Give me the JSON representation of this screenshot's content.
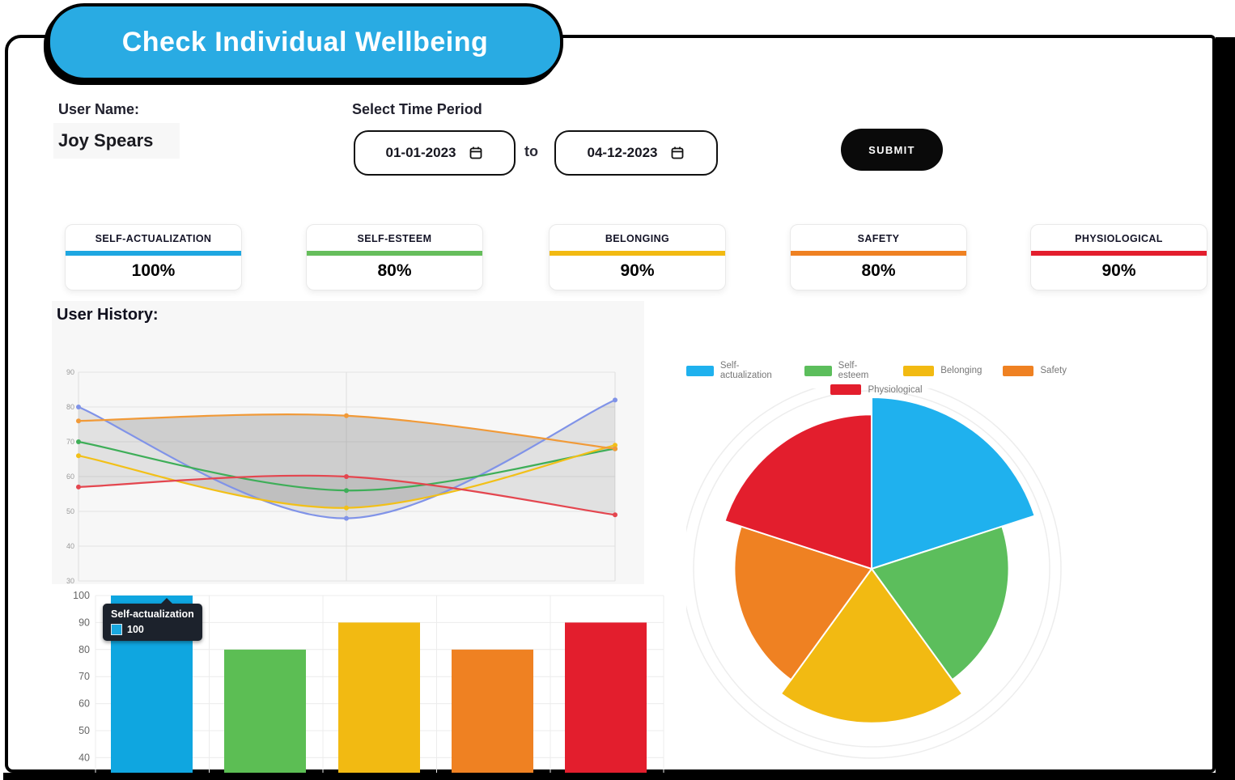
{
  "badge": {
    "label": "Check Individual Wellbeing",
    "color": "#29ABE3"
  },
  "form": {
    "user_name_label": "User Name:",
    "user_name_value": "Joy Spears",
    "time_period_label": "Select Time Period",
    "date_from": "01-01-2023",
    "to_label": "to",
    "date_to": "04-12-2023",
    "submit_label": "SUBMIT"
  },
  "stat_cards": [
    {
      "label": "SELF-ACTUALIZATION",
      "value": "100%",
      "color": "#1EA7E1"
    },
    {
      "label": "SELF-ESTEEM",
      "value": "80%",
      "color": "#66BE5C"
    },
    {
      "label": "BELONGING",
      "value": "90%",
      "color": "#F2BA12"
    },
    {
      "label": "SAFETY",
      "value": "80%",
      "color": "#EF8122"
    },
    {
      "label": "PHYSIOLOGICAL",
      "value": "90%",
      "color": "#E31E2D"
    }
  ],
  "user_history_title": "User History:",
  "chart_data": [
    {
      "type": "line",
      "title": "User History:",
      "ylim": [
        30,
        92
      ],
      "yticks": [
        30,
        40,
        50,
        60,
        70,
        80,
        90
      ],
      "x_count": 3,
      "grid": true,
      "fill_color": "rgba(110,110,110,0.16)",
      "series": [
        {
          "name": "Self-actualization",
          "color": "#8093E8",
          "values": [
            80,
            48,
            82
          ]
        },
        {
          "name": "Self-esteem",
          "color": "#3EAE58",
          "values": [
            70,
            56,
            68
          ]
        },
        {
          "name": "Belonging",
          "color": "#F2C018",
          "values": [
            66,
            51,
            69
          ]
        },
        {
          "name": "Safety",
          "color": "#F19A38",
          "values": [
            76,
            77.5,
            68
          ]
        },
        {
          "name": "Physiological",
          "color": "#E4464F",
          "values": [
            57,
            60,
            49
          ]
        }
      ]
    },
    {
      "type": "bar",
      "categories": [
        "Self-actualization",
        "Self-esteem",
        "Belonging",
        "Safety",
        "Physiological"
      ],
      "values": [
        100,
        80,
        90,
        80,
        90
      ],
      "colors": [
        "#0FA6E0",
        "#5CBE54",
        "#F2BA12",
        "#EF8122",
        "#E31E2D"
      ],
      "yticks": [
        40,
        50,
        60,
        70,
        80,
        90,
        100
      ],
      "ylim": [
        32,
        100
      ],
      "grid": true,
      "tooltip": {
        "title": "Self-actualization",
        "value": "100",
        "swatch_color": "#19A8E0"
      }
    },
    {
      "type": "pie",
      "style": "polar-area",
      "categories": [
        "Self-actualization",
        "Self-esteem",
        "Belonging",
        "Safety",
        "Physiological"
      ],
      "values": [
        100,
        80,
        90,
        80,
        90
      ],
      "colors": [
        "#1FB1EE",
        "#5CBE5C",
        "#F2BA12",
        "#EF8122",
        "#E31E2D"
      ],
      "legend_rows": [
        [
          "Self-actualization",
          "Self-esteem",
          "Belonging",
          "Safety"
        ],
        [
          "Physiological"
        ]
      ],
      "legend_position": "top"
    }
  ]
}
